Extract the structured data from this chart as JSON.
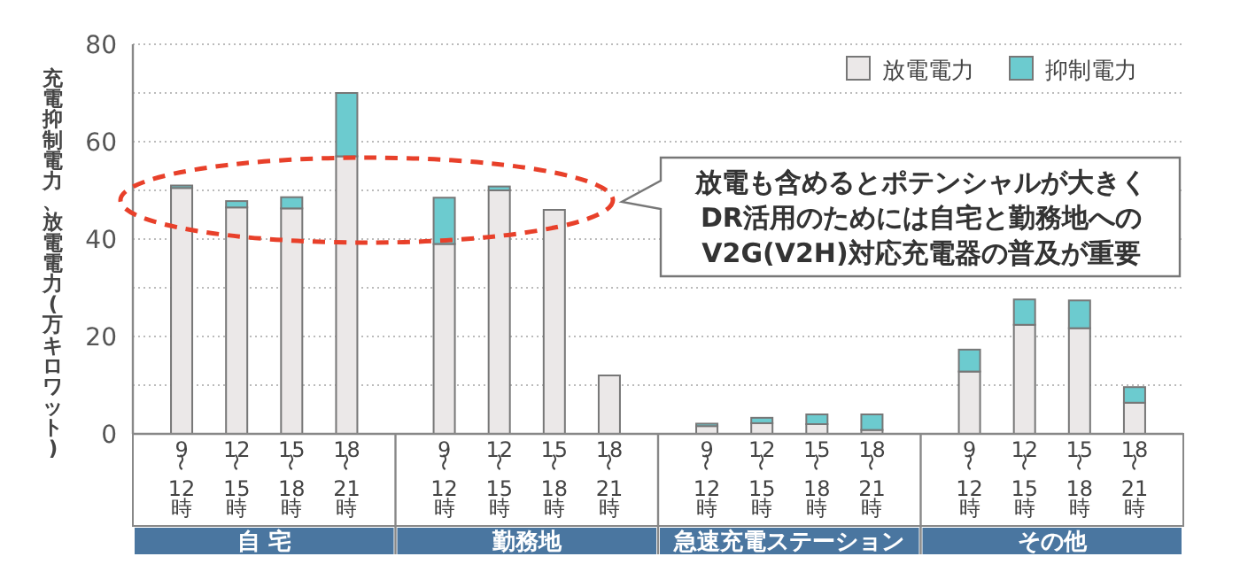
{
  "chart_data": {
    "type": "bar",
    "stacked": true,
    "ylabel": "充電抑制電力、放電電力(万キロワット)",
    "categories": [
      "9〜12時",
      "12〜15時",
      "15〜18時",
      "18〜21時",
      "9〜12時",
      "12〜15時",
      "15〜18時",
      "18〜21時",
      "9〜12時",
      "12〜15時",
      "15〜18時",
      "18〜21時",
      "9〜12時",
      "12〜15時",
      "15〜18時",
      "18〜21時"
    ],
    "series": [
      {
        "name": "放電電力",
        "color": "#ebe8e8",
        "values": [
          50.5,
          46.5,
          46.3,
          57,
          39,
          50,
          46,
          12,
          1.6,
          2.2,
          2,
          0.8,
          12.8,
          22.4,
          21.7,
          6.4
        ]
      },
      {
        "name": "抑制電力",
        "color": "#6ccbcf",
        "values": [
          0.5,
          1.3,
          2.3,
          13,
          9.5,
          0.8,
          0,
          0,
          0.5,
          1.1,
          2,
          3.2,
          4.5,
          5.2,
          5.7,
          3.2
        ]
      }
    ],
    "ylim": [
      0,
      80
    ],
    "yticks": [
      0,
      20,
      40,
      60,
      80
    ],
    "grid": "y",
    "legend": "top right",
    "annotations": [
      "放電も含めるとポテンシャルが大きく\nDR活用のためには自宅と勤務地への\nV2G(V2H)対応充電器の普及が重要",
      "自 宅",
      "勤務地",
      "急速充電ステーション",
      "その他"
    ]
  }
}
